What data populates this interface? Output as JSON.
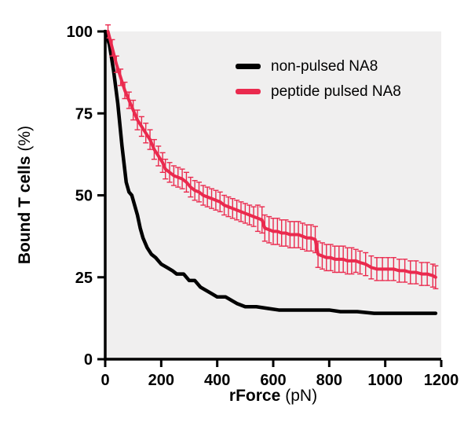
{
  "chart_data": {
    "type": "line",
    "title": "",
    "x_title_bold": "rForce",
    "x_title_rest": "(pN)",
    "y_title_bold": "Bound T cells",
    "y_title_rest": "(%)",
    "xlim": [
      0,
      1200
    ],
    "ylim": [
      0,
      100
    ],
    "xticks": [
      0,
      200,
      400,
      600,
      800,
      1000,
      1200
    ],
    "yticks": [
      0,
      25,
      50,
      75,
      100
    ],
    "plot_bg": "#f0efef",
    "axis_color": "#000000",
    "legend_position": "top-right",
    "series": [
      {
        "name": "non-pulsed NA8",
        "color": "#000000",
        "x": [
          0,
          15,
          30,
          45,
          60,
          75,
          85,
          95,
          105,
          115,
          125,
          135,
          150,
          165,
          180,
          200,
          220,
          240,
          255,
          280,
          300,
          320,
          340,
          360,
          380,
          400,
          430,
          450,
          470,
          500,
          540,
          580,
          620,
          680,
          740,
          800,
          840,
          900,
          960,
          1020,
          1080,
          1140,
          1180
        ],
        "y": [
          100,
          96,
          88,
          78,
          65,
          54,
          51,
          50,
          47,
          44,
          40,
          37,
          34,
          32,
          31,
          29,
          28,
          27,
          26,
          26,
          24,
          24,
          22,
          21,
          20,
          19,
          19,
          18,
          17,
          16,
          16,
          15.5,
          15,
          15,
          15,
          15,
          14.5,
          14.5,
          14,
          14,
          14,
          14,
          14
        ]
      },
      {
        "name": "peptide pulsed NA8",
        "color": "#ea2a4e",
        "x": [
          10,
          25,
          40,
          55,
          70,
          85,
          100,
          115,
          130,
          145,
          160,
          175,
          190,
          205,
          215,
          230,
          245,
          260,
          275,
          290,
          305,
          320,
          335,
          350,
          365,
          380,
          395,
          410,
          425,
          440,
          455,
          470,
          485,
          500,
          515,
          530,
          545,
          560,
          570,
          585,
          600,
          615,
          630,
          645,
          660,
          675,
          690,
          705,
          720,
          735,
          750,
          760,
          775,
          790,
          805,
          820,
          835,
          850,
          865,
          880,
          895,
          910,
          930,
          950,
          970,
          990,
          1010,
          1030,
          1050,
          1070,
          1090,
          1110,
          1130,
          1150,
          1170,
          1180
        ],
        "y": [
          100,
          95,
          90,
          86,
          82,
          79,
          76,
          73,
          71,
          69,
          67,
          64,
          62,
          60,
          58,
          57,
          56,
          55.5,
          55,
          54,
          52.5,
          51.5,
          51,
          50,
          49.5,
          49,
          48.5,
          48,
          47,
          46.5,
          46,
          45.5,
          45,
          44.5,
          44,
          43.5,
          43,
          42.5,
          40,
          39.5,
          39,
          39,
          38.5,
          38.5,
          38,
          38,
          38,
          37.5,
          37,
          37,
          36.5,
          32,
          31.5,
          31,
          31,
          30.5,
          30.5,
          30.5,
          30,
          30,
          30,
          29.5,
          29,
          28,
          27.5,
          27.5,
          27.5,
          27.5,
          27,
          27,
          26.5,
          26.5,
          26,
          26,
          25.5,
          25
        ],
        "yerr": [
          2,
          2.5,
          2.5,
          2.5,
          2.5,
          2.5,
          3,
          3,
          3,
          3,
          3,
          3,
          3,
          3,
          3,
          3,
          3,
          3,
          3,
          3,
          3,
          3,
          3,
          3,
          3,
          3,
          3,
          3,
          3,
          3,
          3,
          3,
          3,
          3,
          3,
          3,
          4,
          4,
          4,
          4,
          4,
          4,
          4,
          4,
          4,
          4,
          4,
          4,
          4,
          4,
          4,
          4,
          4,
          4,
          4,
          4,
          4,
          4,
          4,
          4,
          3.5,
          3.5,
          3.5,
          3.5,
          3.5,
          3.5,
          3.5,
          3.5,
          3.5,
          3.5,
          3.5,
          3.5,
          3.5,
          3.5,
          3.5,
          3.5
        ]
      }
    ]
  }
}
